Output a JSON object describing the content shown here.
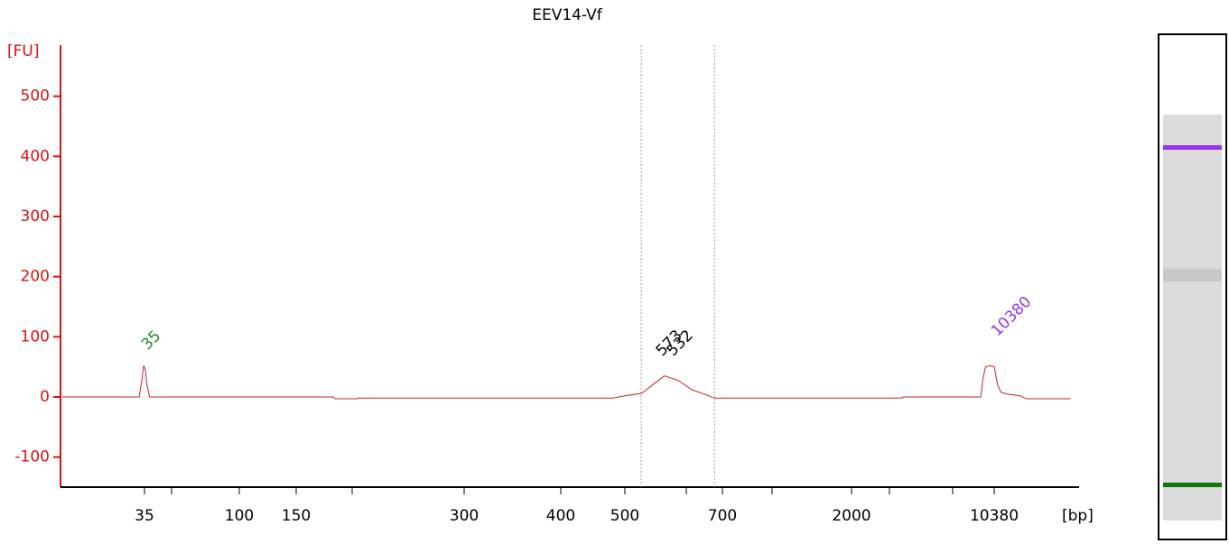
{
  "chart_data": {
    "type": "line",
    "title": "EEV14-Vf",
    "y_label": "[FU]",
    "x_label": "[bp]",
    "x": [
      14,
      33,
      34,
      34.7,
      35.3,
      36,
      37,
      175,
      176,
      193,
      194,
      480,
      500,
      530,
      550,
      573,
      600,
      630,
      660,
      681,
      3600,
      3620,
      8900,
      9100,
      9400,
      9900,
      10380,
      10800,
      11200,
      12000,
      14000,
      15000,
      25000
    ],
    "series": [
      {
        "name": "EEV14-Vf",
        "color": "#cc2222",
        "values": [
          0,
          0,
          28,
          52,
          45,
          20,
          0,
          0,
          -3,
          -3,
          -2,
          -2,
          2,
          6,
          20,
          35,
          28,
          12,
          4,
          -2,
          -2,
          0,
          0,
          30,
          50,
          52,
          50,
          20,
          8,
          5,
          2,
          -3,
          -3
        ]
      }
    ],
    "peak_labels": [
      {
        "text": "35",
        "x": 35,
        "color": "#228822"
      },
      {
        "text": "573",
        "x": 573,
        "color": "#000000"
      },
      {
        "text": "532",
        "x": 573,
        "color": "#000000"
      },
      {
        "text": "10380",
        "x": 10380,
        "color": "#9933ee"
      }
    ],
    "region": [
      529,
      681
    ],
    "ylim": [
      -150,
      585
    ],
    "yticks": [
      -100,
      0,
      100,
      200,
      300,
      400,
      500
    ],
    "xticks": [
      35,
      100,
      150,
      300,
      400,
      500,
      700,
      2000,
      10380
    ],
    "axis_color": "#dd1111"
  }
}
